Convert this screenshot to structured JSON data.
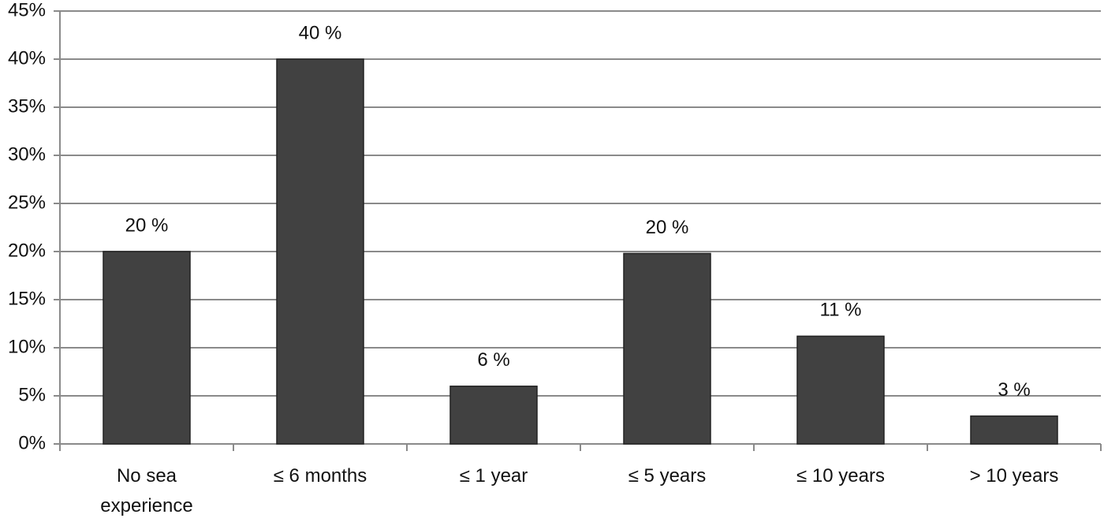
{
  "chart_data": {
    "type": "bar",
    "categories": [
      "No sea experience",
      "≤ 6 months",
      "≤ 1 year",
      "≤ 5 years",
      "≤ 10 years",
      "> 10 years"
    ],
    "values": [
      20,
      40,
      6,
      19.8,
      11.2,
      2.9
    ],
    "value_labels": [
      "20 %",
      "40 %",
      "6 %",
      "20 %",
      "11 %",
      "3 %"
    ],
    "color": "#414141",
    "ylim": [
      0,
      45
    ],
    "yticks": [
      {
        "value": 0,
        "label": "0%"
      },
      {
        "value": 5,
        "label": "5%"
      },
      {
        "value": 10,
        "label": "10%"
      },
      {
        "value": 15,
        "label": "15%"
      },
      {
        "value": 20,
        "label": "20%"
      },
      {
        "value": 25,
        "label": "25%"
      },
      {
        "value": 30,
        "label": "30%"
      },
      {
        "value": 35,
        "label": "35%"
      },
      {
        "value": 40,
        "label": "40%"
      },
      {
        "value": 45,
        "label": "45%"
      }
    ],
    "grid": true
  }
}
